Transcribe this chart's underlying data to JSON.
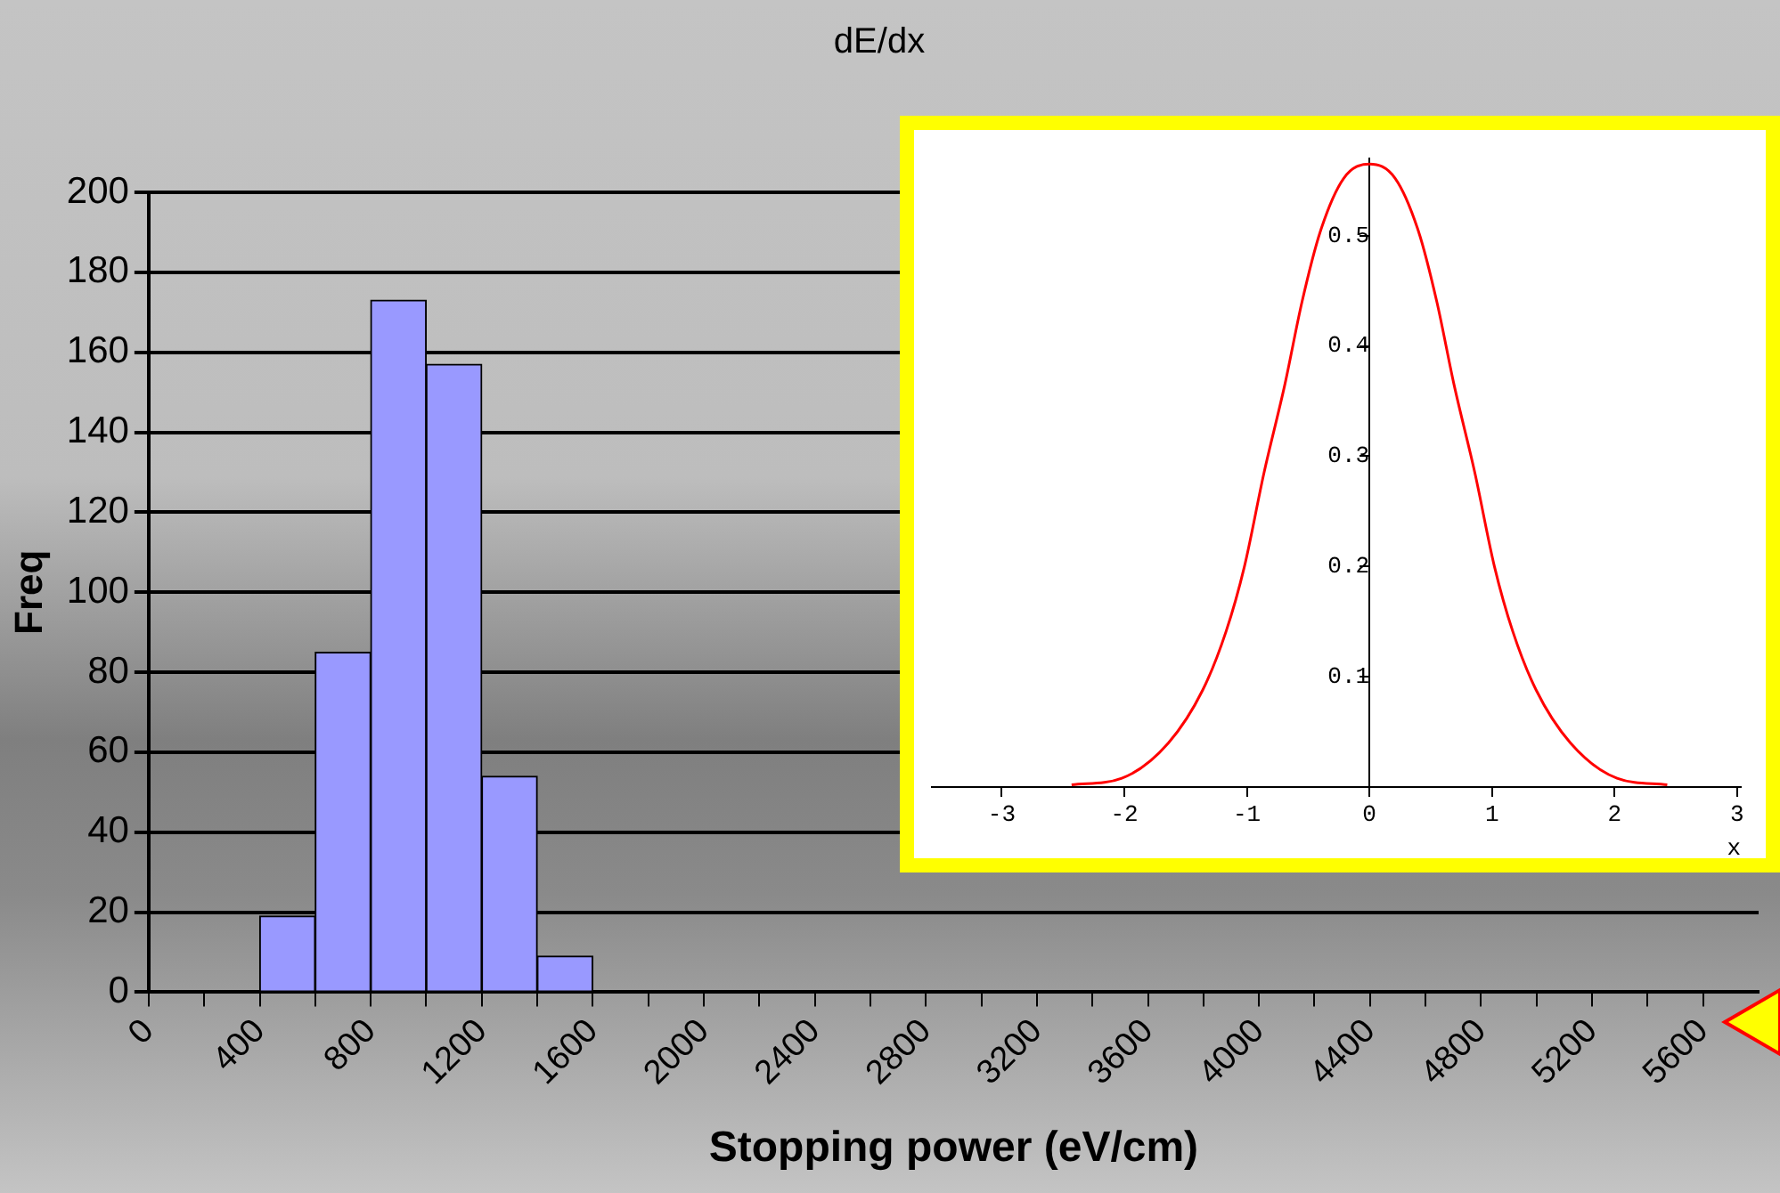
{
  "chart_data": [
    {
      "type": "histogram",
      "title": "dE/dx",
      "xlabel": "Stopping power (eV/cm)",
      "ylabel": "Freq",
      "bins": [
        400,
        600,
        800,
        1000,
        1200,
        1400,
        1600
      ],
      "values": [
        19,
        85,
        173,
        157,
        54,
        9
      ],
      "color": "#9999ff",
      "xlim": [
        0,
        5800
      ],
      "xticks": [
        0,
        {
          "value": 200,
          "label": null
        },
        400,
        {
          "value": 600,
          "label": null
        },
        800,
        {
          "value": 1000,
          "label": null
        },
        1200,
        {
          "value": 1400,
          "label": null
        },
        1600,
        {
          "value": 1800,
          "label": null
        },
        2000,
        {
          "value": 2200,
          "label": null
        },
        2400,
        {
          "value": 2600,
          "label": null
        },
        2800,
        {
          "value": 3000,
          "label": null
        },
        3200,
        {
          "value": 3400,
          "label": null
        },
        3600,
        {
          "value": 3800,
          "label": null
        },
        4000,
        {
          "value": 4200,
          "label": null
        },
        4400,
        {
          "value": 4600,
          "label": null
        },
        4800,
        {
          "value": 5000,
          "label": null
        },
        5200,
        {
          "value": 5400,
          "label": null
        },
        5600
      ],
      "ylim": [
        0,
        200
      ],
      "yticks": [
        0,
        20,
        40,
        60,
        80,
        100,
        120,
        140,
        160,
        180,
        200
      ],
      "grid": "y",
      "legend": false
    },
    {
      "type": "line",
      "xlabel": "x",
      "marker": "none",
      "legend": false,
      "x": [
        -2.43,
        -2.02,
        -1.64,
        -1.36,
        -1.17,
        -1.02,
        -0.86,
        -0.69,
        -0.55,
        -0.4,
        -0.21,
        0,
        0.21,
        0.4,
        0.55,
        0.69,
        0.86,
        1.02,
        1.17,
        1.36,
        1.64,
        2.02,
        2.43
      ],
      "series": [
        {
          "color": "#ff0000",
          "values": [
            0.002,
            0.008,
            0.04,
            0.088,
            0.141,
            0.2,
            0.285,
            0.365,
            0.44,
            0.504,
            0.552,
            0.565,
            0.552,
            0.504,
            0.44,
            0.365,
            0.285,
            0.2,
            0.141,
            0.088,
            0.04,
            0.008,
            0.002
          ]
        }
      ],
      "xlim": [
        -3.57,
        3.03
      ],
      "xticks": [
        -3,
        -2,
        -1,
        0,
        1,
        2,
        3
      ],
      "ylim": [
        0,
        0.57
      ],
      "yticks": [
        0.1,
        0.2,
        0.3,
        0.4,
        0.5
      ],
      "grid": false
    }
  ]
}
